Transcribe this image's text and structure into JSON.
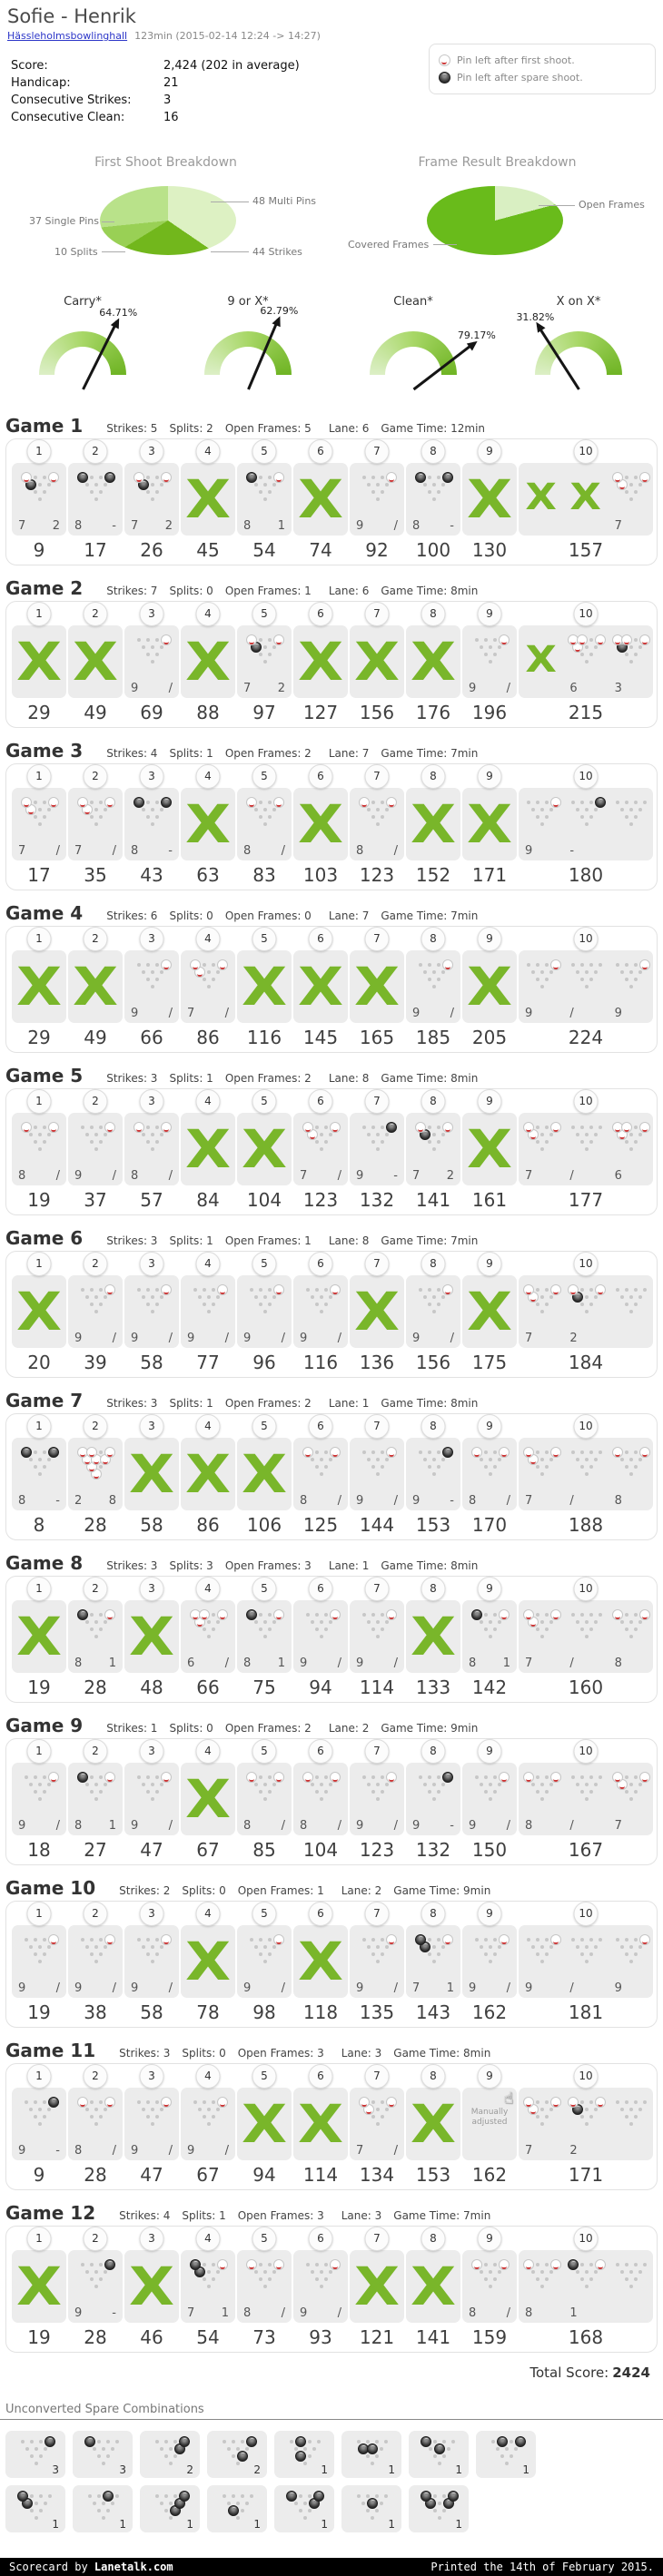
{
  "header": {
    "title": "Sofie - Henrik",
    "venue": "Hässleholmsbowlinghall",
    "session": "123min (2015-02-14 12:24 -> 14:27)",
    "stats": [
      {
        "label": "Score:",
        "value": "2,424 (202 in average)"
      },
      {
        "label": "Handicap:",
        "value": "21"
      },
      {
        "label": "Consecutive Strikes:",
        "value": "3"
      },
      {
        "label": "Consecutive Clean:",
        "value": "16"
      }
    ]
  },
  "legend": {
    "items": [
      {
        "icon": "pin-first-shot-icon",
        "text": "Pin left after first shoot."
      },
      {
        "icon": "pin-spare-shot-icon",
        "text": "Pin left after spare shoot."
      }
    ]
  },
  "chart_data": [
    {
      "type": "pie",
      "title": "First Shoot Breakdown",
      "slices": [
        {
          "label": "48 Multi Pins",
          "value": 48,
          "color": "#ddf1c3"
        },
        {
          "label": "44 Strikes",
          "value": 44,
          "color": "#72b71c"
        },
        {
          "label": "10 Splits",
          "value": 10,
          "color": "#99d055"
        },
        {
          "label": "37 Single Pins",
          "value": 37,
          "color": "#b9e28a"
        }
      ]
    },
    {
      "type": "pie",
      "title": "Frame Result Breakdown",
      "slices": [
        {
          "label": "Open Frames",
          "value": 25,
          "pct": 20.83,
          "color": "#d9efc2"
        },
        {
          "label": "Covered Frames",
          "value": 95,
          "pct": 79.17,
          "color": "#69bb1b"
        }
      ]
    }
  ],
  "gauges": [
    {
      "label": "Carry*",
      "value": "64.71%",
      "pct": 64.71
    },
    {
      "label": "9 or X*",
      "value": "62.79%",
      "pct": 62.79
    },
    {
      "label": "Clean*",
      "value": "79.17%",
      "pct": 79.17
    },
    {
      "label": "X on X*",
      "value": "31.82%",
      "pct": 31.82
    }
  ],
  "stat_labels": {
    "strikes": "Strikes:",
    "splits": "Splits:",
    "open": "Open Frames:",
    "lane": "Lane:",
    "time": "Game Time:"
  },
  "ui": {
    "manually_adjusted": "Manually adjusted",
    "total_label": "Total Score:",
    "total_value": "2424",
    "spare_title": "Unconverted Spare Combinations"
  },
  "games": [
    {
      "n": "Game 1",
      "strikes": 5,
      "splits": 2,
      "open": 5,
      "lane": 6,
      "time": "12min",
      "frames": [
        {
          "s": [
            "7",
            "2"
          ],
          "v": 9
        },
        {
          "s": [
            "8",
            "-"
          ],
          "v": 17
        },
        {
          "s": [
            "7",
            "2"
          ],
          "v": 26
        },
        {
          "s": [
            "X"
          ],
          "v": 45
        },
        {
          "s": [
            "8",
            "1"
          ],
          "v": 54
        },
        {
          "s": [
            "X"
          ],
          "v": 74
        },
        {
          "s": [
            "9",
            "/"
          ],
          "v": 92
        },
        {
          "s": [
            "8",
            "-"
          ],
          "v": 100
        },
        {
          "s": [
            "X"
          ],
          "v": 130
        },
        {
          "s": [
            "X",
            "X",
            "7"
          ],
          "v": 157
        }
      ]
    },
    {
      "n": "Game 2",
      "strikes": 7,
      "splits": 0,
      "open": 1,
      "lane": 6,
      "time": "8min",
      "frames": [
        {
          "s": [
            "X"
          ],
          "v": 29
        },
        {
          "s": [
            "X"
          ],
          "v": 49
        },
        {
          "s": [
            "9",
            "/"
          ],
          "v": 69
        },
        {
          "s": [
            "X"
          ],
          "v": 88
        },
        {
          "s": [
            "7",
            "2"
          ],
          "v": 97
        },
        {
          "s": [
            "X"
          ],
          "v": 127
        },
        {
          "s": [
            "X"
          ],
          "v": 156
        },
        {
          "s": [
            "X"
          ],
          "v": 176
        },
        {
          "s": [
            "9",
            "/"
          ],
          "v": 196
        },
        {
          "s": [
            "X",
            "6",
            "3"
          ],
          "v": 215
        }
      ]
    },
    {
      "n": "Game 3",
      "strikes": 4,
      "splits": 1,
      "open": 2,
      "lane": 7,
      "time": "7min",
      "frames": [
        {
          "s": [
            "7",
            "/"
          ],
          "v": 17
        },
        {
          "s": [
            "7",
            "/"
          ],
          "v": 35
        },
        {
          "s": [
            "8",
            "-"
          ],
          "v": 43
        },
        {
          "s": [
            "X"
          ],
          "v": 63
        },
        {
          "s": [
            "8",
            "/"
          ],
          "v": 83
        },
        {
          "s": [
            "X"
          ],
          "v": 103
        },
        {
          "s": [
            "8",
            "/"
          ],
          "v": 123
        },
        {
          "s": [
            "X"
          ],
          "v": 152
        },
        {
          "s": [
            "X"
          ],
          "v": 171
        },
        {
          "s": [
            "9",
            "-",
            ""
          ],
          "v": 180
        }
      ]
    },
    {
      "n": "Game 4",
      "strikes": 6,
      "splits": 0,
      "open": 0,
      "lane": 7,
      "time": "7min",
      "frames": [
        {
          "s": [
            "X"
          ],
          "v": 29
        },
        {
          "s": [
            "X"
          ],
          "v": 49
        },
        {
          "s": [
            "9",
            "/"
          ],
          "v": 66
        },
        {
          "s": [
            "7",
            "/"
          ],
          "v": 86
        },
        {
          "s": [
            "X"
          ],
          "v": 116
        },
        {
          "s": [
            "X"
          ],
          "v": 145
        },
        {
          "s": [
            "X"
          ],
          "v": 165
        },
        {
          "s": [
            "9",
            "/"
          ],
          "v": 185
        },
        {
          "s": [
            "X"
          ],
          "v": 205
        },
        {
          "s": [
            "9",
            "/",
            "9"
          ],
          "v": 224
        }
      ]
    },
    {
      "n": "Game 5",
      "strikes": 3,
      "splits": 1,
      "open": 2,
      "lane": 8,
      "time": "8min",
      "frames": [
        {
          "s": [
            "8",
            "/"
          ],
          "v": 19
        },
        {
          "s": [
            "9",
            "/"
          ],
          "v": 37
        },
        {
          "s": [
            "8",
            "/"
          ],
          "v": 57
        },
        {
          "s": [
            "X"
          ],
          "v": 84
        },
        {
          "s": [
            "X"
          ],
          "v": 104
        },
        {
          "s": [
            "7",
            "/"
          ],
          "v": 123
        },
        {
          "s": [
            "9",
            "-"
          ],
          "v": 132
        },
        {
          "s": [
            "7",
            "2"
          ],
          "v": 141
        },
        {
          "s": [
            "X"
          ],
          "v": 161
        },
        {
          "s": [
            "7",
            "/",
            "6"
          ],
          "v": 177
        }
      ]
    },
    {
      "n": "Game 6",
      "strikes": 3,
      "splits": 1,
      "open": 1,
      "lane": 8,
      "time": "7min",
      "frames": [
        {
          "s": [
            "X"
          ],
          "v": 20
        },
        {
          "s": [
            "9",
            "/"
          ],
          "v": 39
        },
        {
          "s": [
            "9",
            "/"
          ],
          "v": 58
        },
        {
          "s": [
            "9",
            "/"
          ],
          "v": 77
        },
        {
          "s": [
            "9",
            "/"
          ],
          "v": 96
        },
        {
          "s": [
            "9",
            "/"
          ],
          "v": 116
        },
        {
          "s": [
            "X"
          ],
          "v": 136
        },
        {
          "s": [
            "9",
            "/"
          ],
          "v": 156
        },
        {
          "s": [
            "X"
          ],
          "v": 175
        },
        {
          "s": [
            "7",
            "2",
            ""
          ],
          "v": 184
        }
      ]
    },
    {
      "n": "Game 7",
      "strikes": 3,
      "splits": 1,
      "open": 2,
      "lane": 1,
      "time": "8min",
      "frames": [
        {
          "s": [
            "8",
            "-"
          ],
          "v": 8
        },
        {
          "s": [
            "2",
            "8"
          ],
          "v": 28
        },
        {
          "s": [
            "X"
          ],
          "v": 58
        },
        {
          "s": [
            "X"
          ],
          "v": 86
        },
        {
          "s": [
            "X"
          ],
          "v": 106
        },
        {
          "s": [
            "8",
            "/"
          ],
          "v": 125
        },
        {
          "s": [
            "9",
            "/"
          ],
          "v": 144
        },
        {
          "s": [
            "9",
            "-"
          ],
          "v": 153
        },
        {
          "s": [
            "8",
            "/"
          ],
          "v": 170
        },
        {
          "s": [
            "7",
            "/",
            "8"
          ],
          "v": 188
        }
      ]
    },
    {
      "n": "Game 8",
      "strikes": 3,
      "splits": 3,
      "open": 3,
      "lane": 1,
      "time": "8min",
      "frames": [
        {
          "s": [
            "X"
          ],
          "v": 19
        },
        {
          "s": [
            "8",
            "1"
          ],
          "v": 28
        },
        {
          "s": [
            "X"
          ],
          "v": 48
        },
        {
          "s": [
            "6",
            "/"
          ],
          "v": 66
        },
        {
          "s": [
            "8",
            "1"
          ],
          "v": 75
        },
        {
          "s": [
            "9",
            "/"
          ],
          "v": 94
        },
        {
          "s": [
            "9",
            "/"
          ],
          "v": 114
        },
        {
          "s": [
            "X"
          ],
          "v": 133
        },
        {
          "s": [
            "8",
            "1"
          ],
          "v": 142
        },
        {
          "s": [
            "7",
            "/",
            "8"
          ],
          "v": 160
        }
      ]
    },
    {
      "n": "Game 9",
      "strikes": 1,
      "splits": 0,
      "open": 2,
      "lane": 2,
      "time": "9min",
      "frames": [
        {
          "s": [
            "9",
            "/"
          ],
          "v": 18
        },
        {
          "s": [
            "8",
            "1"
          ],
          "v": 27
        },
        {
          "s": [
            "9",
            "/"
          ],
          "v": 47
        },
        {
          "s": [
            "X"
          ],
          "v": 67
        },
        {
          "s": [
            "8",
            "/"
          ],
          "v": 85
        },
        {
          "s": [
            "8",
            "/"
          ],
          "v": 104
        },
        {
          "s": [
            "9",
            "/"
          ],
          "v": 123
        },
        {
          "s": [
            "9",
            "-"
          ],
          "v": 132
        },
        {
          "s": [
            "9",
            "/"
          ],
          "v": 150
        },
        {
          "s": [
            "8",
            "/",
            "7"
          ],
          "v": 167
        }
      ]
    },
    {
      "n": "Game 10",
      "strikes": 2,
      "splits": 0,
      "open": 1,
      "lane": 2,
      "time": "9min",
      "frames": [
        {
          "s": [
            "9",
            "/"
          ],
          "v": 19
        },
        {
          "s": [
            "9",
            "/"
          ],
          "v": 38
        },
        {
          "s": [
            "9",
            "/"
          ],
          "v": 58
        },
        {
          "s": [
            "X"
          ],
          "v": 78
        },
        {
          "s": [
            "9",
            "/"
          ],
          "v": 98
        },
        {
          "s": [
            "X"
          ],
          "v": 118
        },
        {
          "s": [
            "9",
            "/"
          ],
          "v": 135
        },
        {
          "s": [
            "7",
            "1"
          ],
          "v": 143
        },
        {
          "s": [
            "9",
            "/"
          ],
          "v": 162
        },
        {
          "s": [
            "9",
            "/",
            "9"
          ],
          "v": 181
        }
      ]
    },
    {
      "n": "Game 11",
      "strikes": 3,
      "splits": 0,
      "open": 3,
      "lane": 3,
      "time": "8min",
      "frames": [
        {
          "s": [
            "9",
            "-"
          ],
          "v": 9
        },
        {
          "s": [
            "8",
            "/"
          ],
          "v": 28
        },
        {
          "s": [
            "9",
            "/"
          ],
          "v": 47
        },
        {
          "s": [
            "9",
            "/"
          ],
          "v": 67
        },
        {
          "s": [
            "X"
          ],
          "v": 94
        },
        {
          "s": [
            "X"
          ],
          "v": 114
        },
        {
          "s": [
            "7",
            "/"
          ],
          "v": 134
        },
        {
          "s": [
            "X"
          ],
          "v": 153
        },
        {
          "s": [],
          "v": 162,
          "adj": true
        },
        {
          "s": [
            "7",
            "2",
            ""
          ],
          "v": 171
        }
      ]
    },
    {
      "n": "Game 12",
      "strikes": 4,
      "splits": 1,
      "open": 3,
      "lane": 3,
      "time": "7min",
      "frames": [
        {
          "s": [
            "X"
          ],
          "v": 19
        },
        {
          "s": [
            "9",
            "-"
          ],
          "v": 28
        },
        {
          "s": [
            "X"
          ],
          "v": 46
        },
        {
          "s": [
            "7",
            "1"
          ],
          "v": 54
        },
        {
          "s": [
            "8",
            "/"
          ],
          "v": 73
        },
        {
          "s": [
            "9",
            "/"
          ],
          "v": 93
        },
        {
          "s": [
            "X"
          ],
          "v": 121
        },
        {
          "s": [
            "X"
          ],
          "v": 141
        },
        {
          "s": [
            "8",
            "/"
          ],
          "v": 159
        },
        {
          "s": [
            "8",
            "1",
            ""
          ],
          "v": 168
        }
      ]
    }
  ],
  "spares": {
    "rows": [
      [
        {
          "pins": [
            10
          ],
          "count": 3
        },
        {
          "pins": [
            7
          ],
          "count": 3
        },
        {
          "pins": [
            6,
            10
          ],
          "count": 2
        },
        {
          "pins": [
            3,
            10
          ],
          "count": 2
        },
        {
          "pins": [
            2,
            8
          ],
          "count": 1
        },
        {
          "pins": [
            4,
            5
          ],
          "count": 1
        },
        {
          "pins": [
            5,
            7
          ],
          "count": 1
        },
        {
          "pins": [
            8,
            10
          ],
          "count": 1
        }
      ],
      [
        {
          "pins": [
            4,
            7
          ],
          "count": 1
        },
        {
          "pins": [
            9
          ],
          "count": 1
        },
        {
          "pins": [
            3,
            6,
            10
          ],
          "count": 1
        },
        {
          "pins": [
            2
          ],
          "count": 1
        },
        {
          "pins": [
            6,
            7,
            10
          ],
          "count": 1
        },
        {
          "pins": [
            5
          ],
          "count": 1
        },
        {
          "pins": [
            4,
            6,
            7,
            10
          ],
          "count": 1
        }
      ]
    ]
  },
  "footer": {
    "left_prefix": "Scorecard by ",
    "brand": "Lanetalk.com",
    "right": "Printed the 14th of February 2015."
  }
}
